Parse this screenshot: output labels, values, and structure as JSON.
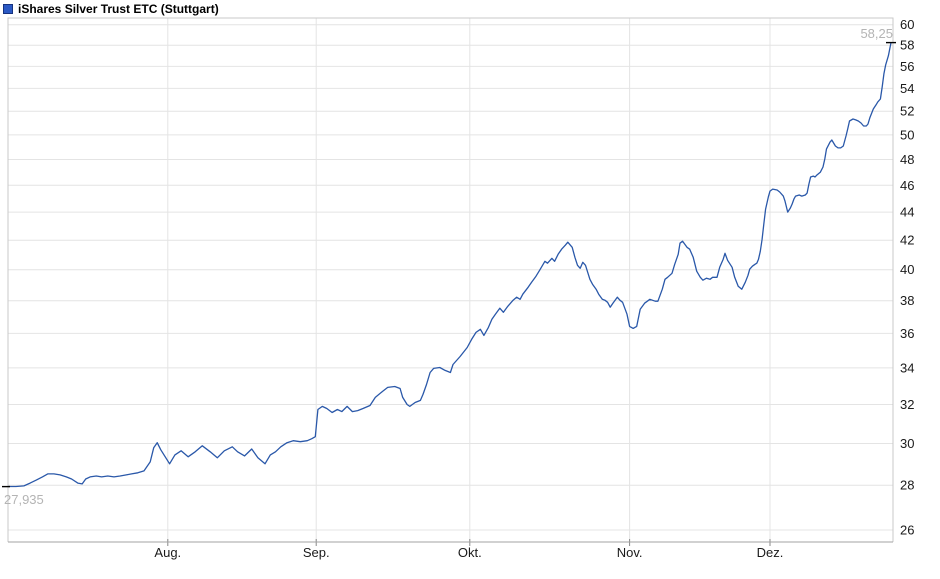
{
  "header": {
    "title": "iShares Silver Trust ETC (Stuttgart)"
  },
  "chart_data": {
    "type": "line",
    "title": "iShares Silver Trust ETC (Stuttgart)",
    "xlabel": "",
    "ylabel": "",
    "y_axis": {
      "min": 26,
      "max": 60,
      "step": 2,
      "scale": "log",
      "side": "right",
      "tick_labels": [
        60,
        58,
        56,
        54,
        52,
        50,
        48,
        46,
        44,
        42,
        40,
        38,
        36,
        34,
        32,
        30,
        28,
        26
      ]
    },
    "x_axis": {
      "ticks": [
        {
          "label": "Aug.",
          "t": 0.181
        },
        {
          "label": "Sep.",
          "t": 0.349
        },
        {
          "label": "Okt.",
          "t": 0.523
        },
        {
          "label": "Nov.",
          "t": 0.704
        },
        {
          "label": "Dez.",
          "t": 0.863
        }
      ]
    },
    "grid": true,
    "legend": false,
    "annotations": {
      "low": "27,935",
      "low_value": 27.935,
      "high": "58,25",
      "high_value": 58.25
    },
    "colors": {
      "line": "#2a58a9",
      "grid": "#e4e4e4",
      "frame": "#c9c9c9",
      "axis_bottom": "#a3a3a3",
      "axis_tick": "#888888",
      "tick_text": "#1a1a1a",
      "muted_text": "#b4b4b4",
      "swatch": "#2b59c4",
      "swatch_border": "#17337f",
      "marker": "#000000"
    },
    "series": [
      {
        "name": "iShares Silver Trust ETC",
        "points": [
          [
            0.0,
            27.94
          ],
          [
            0.009,
            27.94
          ],
          [
            0.018,
            27.97
          ],
          [
            0.025,
            28.1
          ],
          [
            0.032,
            28.24
          ],
          [
            0.039,
            28.39
          ],
          [
            0.045,
            28.53
          ],
          [
            0.052,
            28.53
          ],
          [
            0.059,
            28.48
          ],
          [
            0.066,
            28.39
          ],
          [
            0.072,
            28.29
          ],
          [
            0.079,
            28.1
          ],
          [
            0.084,
            28.06
          ],
          [
            0.088,
            28.29
          ],
          [
            0.093,
            28.39
          ],
          [
            0.1,
            28.43
          ],
          [
            0.106,
            28.39
          ],
          [
            0.113,
            28.43
          ],
          [
            0.12,
            28.39
          ],
          [
            0.127,
            28.43
          ],
          [
            0.134,
            28.48
          ],
          [
            0.14,
            28.53
          ],
          [
            0.147,
            28.58
          ],
          [
            0.154,
            28.67
          ],
          [
            0.161,
            29.1
          ],
          [
            0.165,
            29.79
          ],
          [
            0.169,
            30.04
          ],
          [
            0.173,
            29.69
          ],
          [
            0.178,
            29.35
          ],
          [
            0.183,
            29.01
          ],
          [
            0.189,
            29.44
          ],
          [
            0.196,
            29.64
          ],
          [
            0.204,
            29.35
          ],
          [
            0.212,
            29.59
          ],
          [
            0.22,
            29.89
          ],
          [
            0.229,
            29.59
          ],
          [
            0.237,
            29.3
          ],
          [
            0.245,
            29.64
          ],
          [
            0.254,
            29.84
          ],
          [
            0.26,
            29.59
          ],
          [
            0.268,
            29.39
          ],
          [
            0.276,
            29.73
          ],
          [
            0.283,
            29.3
          ],
          [
            0.291,
            29.01
          ],
          [
            0.297,
            29.44
          ],
          [
            0.303,
            29.59
          ],
          [
            0.309,
            29.84
          ],
          [
            0.316,
            30.04
          ],
          [
            0.323,
            30.14
          ],
          [
            0.331,
            30.09
          ],
          [
            0.339,
            30.14
          ],
          [
            0.344,
            30.24
          ],
          [
            0.348,
            30.34
          ],
          [
            0.351,
            31.74
          ],
          [
            0.356,
            31.9
          ],
          [
            0.361,
            31.79
          ],
          [
            0.367,
            31.58
          ],
          [
            0.373,
            31.74
          ],
          [
            0.378,
            31.63
          ],
          [
            0.384,
            31.9
          ],
          [
            0.39,
            31.63
          ],
          [
            0.396,
            31.68
          ],
          [
            0.402,
            31.79
          ],
          [
            0.41,
            31.95
          ],
          [
            0.416,
            32.38
          ],
          [
            0.424,
            32.7
          ],
          [
            0.43,
            32.92
          ],
          [
            0.438,
            32.97
          ],
          [
            0.444,
            32.86
          ],
          [
            0.447,
            32.38
          ],
          [
            0.452,
            32.0
          ],
          [
            0.455,
            31.9
          ],
          [
            0.461,
            32.11
          ],
          [
            0.467,
            32.22
          ],
          [
            0.47,
            32.54
          ],
          [
            0.474,
            33.08
          ],
          [
            0.478,
            33.74
          ],
          [
            0.482,
            33.97
          ],
          [
            0.489,
            34.02
          ],
          [
            0.495,
            33.86
          ],
          [
            0.501,
            33.74
          ],
          [
            0.504,
            34.19
          ],
          [
            0.512,
            34.65
          ],
          [
            0.52,
            35.17
          ],
          [
            0.525,
            35.64
          ],
          [
            0.53,
            36.06
          ],
          [
            0.535,
            36.24
          ],
          [
            0.539,
            35.88
          ],
          [
            0.544,
            36.36
          ],
          [
            0.548,
            36.85
          ],
          [
            0.552,
            37.16
          ],
          [
            0.557,
            37.53
          ],
          [
            0.561,
            37.28
          ],
          [
            0.566,
            37.65
          ],
          [
            0.572,
            38.03
          ],
          [
            0.576,
            38.22
          ],
          [
            0.58,
            38.09
          ],
          [
            0.583,
            38.41
          ],
          [
            0.589,
            38.85
          ],
          [
            0.593,
            39.18
          ],
          [
            0.598,
            39.57
          ],
          [
            0.602,
            39.96
          ],
          [
            0.608,
            40.56
          ],
          [
            0.611,
            40.43
          ],
          [
            0.616,
            40.76
          ],
          [
            0.619,
            40.56
          ],
          [
            0.623,
            41.03
          ],
          [
            0.627,
            41.38
          ],
          [
            0.631,
            41.65
          ],
          [
            0.634,
            41.86
          ],
          [
            0.639,
            41.51
          ],
          [
            0.642,
            40.83
          ],
          [
            0.645,
            40.29
          ],
          [
            0.648,
            40.09
          ],
          [
            0.651,
            40.49
          ],
          [
            0.654,
            40.29
          ],
          [
            0.659,
            39.37
          ],
          [
            0.662,
            39.05
          ],
          [
            0.666,
            38.73
          ],
          [
            0.669,
            38.41
          ],
          [
            0.673,
            38.09
          ],
          [
            0.676,
            38.03
          ],
          [
            0.679,
            37.9
          ],
          [
            0.682,
            37.59
          ],
          [
            0.685,
            37.84
          ],
          [
            0.69,
            38.22
          ],
          [
            0.693,
            38.03
          ],
          [
            0.696,
            37.9
          ],
          [
            0.701,
            37.16
          ],
          [
            0.704,
            36.42
          ],
          [
            0.708,
            36.3
          ],
          [
            0.712,
            36.42
          ],
          [
            0.716,
            37.47
          ],
          [
            0.721,
            37.84
          ],
          [
            0.727,
            38.09
          ],
          [
            0.733,
            37.97
          ],
          [
            0.736,
            37.97
          ],
          [
            0.741,
            38.73
          ],
          [
            0.744,
            39.37
          ],
          [
            0.747,
            39.5
          ],
          [
            0.752,
            39.76
          ],
          [
            0.755,
            40.36
          ],
          [
            0.759,
            41.03
          ],
          [
            0.761,
            41.79
          ],
          [
            0.764,
            41.93
          ],
          [
            0.769,
            41.51
          ],
          [
            0.772,
            41.38
          ],
          [
            0.776,
            40.83
          ],
          [
            0.78,
            39.9
          ],
          [
            0.784,
            39.5
          ],
          [
            0.787,
            39.31
          ],
          [
            0.791,
            39.44
          ],
          [
            0.795,
            39.37
          ],
          [
            0.798,
            39.5
          ],
          [
            0.803,
            39.5
          ],
          [
            0.806,
            40.16
          ],
          [
            0.81,
            40.7
          ],
          [
            0.812,
            41.1
          ],
          [
            0.815,
            40.63
          ],
          [
            0.82,
            40.16
          ],
          [
            0.823,
            39.5
          ],
          [
            0.827,
            38.92
          ],
          [
            0.831,
            38.73
          ],
          [
            0.835,
            39.18
          ],
          [
            0.838,
            39.63
          ],
          [
            0.84,
            40.03
          ],
          [
            0.843,
            40.23
          ],
          [
            0.846,
            40.36
          ],
          [
            0.848,
            40.43
          ],
          [
            0.85,
            40.7
          ],
          [
            0.852,
            41.24
          ],
          [
            0.854,
            42.07
          ],
          [
            0.856,
            43.13
          ],
          [
            0.858,
            44.22
          ],
          [
            0.861,
            45.11
          ],
          [
            0.863,
            45.56
          ],
          [
            0.866,
            45.71
          ],
          [
            0.871,
            45.64
          ],
          [
            0.874,
            45.49
          ],
          [
            0.878,
            45.18
          ],
          [
            0.88,
            44.81
          ],
          [
            0.883,
            44.0
          ],
          [
            0.886,
            44.29
          ],
          [
            0.888,
            44.59
          ],
          [
            0.89,
            44.96
          ],
          [
            0.892,
            45.18
          ],
          [
            0.896,
            45.26
          ],
          [
            0.899,
            45.18
          ],
          [
            0.903,
            45.26
          ],
          [
            0.905,
            45.41
          ],
          [
            0.907,
            46.09
          ],
          [
            0.909,
            46.63
          ],
          [
            0.912,
            46.7
          ],
          [
            0.914,
            46.63
          ],
          [
            0.916,
            46.78
          ],
          [
            0.92,
            47.01
          ],
          [
            0.923,
            47.41
          ],
          [
            0.925,
            48.04
          ],
          [
            0.927,
            48.85
          ],
          [
            0.931,
            49.42
          ],
          [
            0.933,
            49.58
          ],
          [
            0.937,
            49.09
          ],
          [
            0.94,
            48.93
          ],
          [
            0.943,
            48.93
          ],
          [
            0.946,
            49.09
          ],
          [
            0.949,
            49.91
          ],
          [
            0.951,
            50.49
          ],
          [
            0.953,
            51.16
          ],
          [
            0.957,
            51.33
          ],
          [
            0.96,
            51.25
          ],
          [
            0.963,
            51.16
          ],
          [
            0.966,
            50.99
          ],
          [
            0.969,
            50.74
          ],
          [
            0.972,
            50.74
          ],
          [
            0.974,
            50.91
          ],
          [
            0.976,
            51.42
          ],
          [
            0.98,
            52.19
          ],
          [
            0.983,
            52.54
          ],
          [
            0.985,
            52.8
          ],
          [
            0.988,
            53.06
          ],
          [
            0.99,
            54.13
          ],
          [
            0.992,
            55.31
          ],
          [
            0.994,
            56.15
          ],
          [
            0.997,
            57.0
          ],
          [
            1.0,
            58.25
          ]
        ]
      }
    ]
  }
}
